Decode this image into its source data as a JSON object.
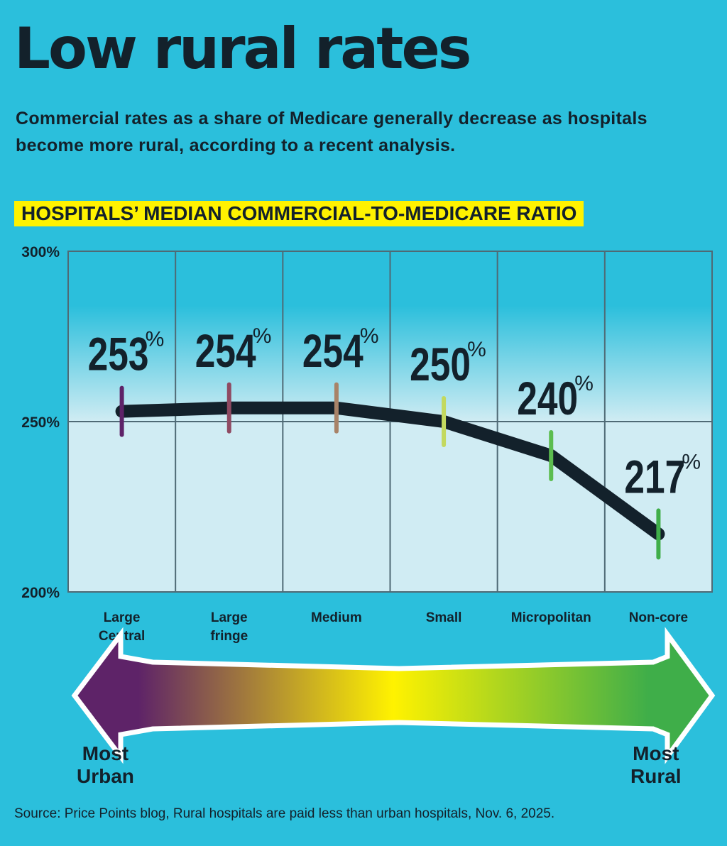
{
  "title": "Low rural rates",
  "subtitle": "Commercial rates as a share of Medicare generally decrease as hospitals become more rural, according to a recent analysis.",
  "source": "Source: Price Points blog, Rural hospitals are paid less than urban hospitals, Nov. 6, 2025.",
  "chart_data": {
    "type": "line",
    "title": "HOSPITALS’ MEDIAN COMMERCIAL-TO-MEDICARE RATIO",
    "categories": [
      [
        "Large",
        "Central"
      ],
      [
        "Large",
        "fringe"
      ],
      [
        "Medium"
      ],
      [
        "Small"
      ],
      [
        "Micropolitan"
      ],
      [
        "Non-core"
      ]
    ],
    "values": [
      253,
      254,
      254,
      250,
      240,
      217
    ],
    "value_labels": [
      "253",
      "254",
      "254",
      "250",
      "240",
      "217"
    ],
    "unit": "%",
    "ylim": [
      200,
      300
    ],
    "yticks": [
      "300%",
      "250%",
      "200%"
    ],
    "grid": true,
    "line_color": "#13212b",
    "marker_colors": [
      "#5e2368",
      "#8f4a62",
      "#a88368",
      "#c3d95f",
      "#5cbd4f",
      "#3fae49"
    ],
    "arrow": {
      "left_label": [
        "Most",
        "Urban"
      ],
      "right_label": [
        "Most",
        "Rural"
      ],
      "colors": [
        "#5e2368",
        "#fff200",
        "#3fae49"
      ]
    }
  },
  "colors": {
    "background": "#2bbfdc",
    "banner": "#fff200",
    "text": "#13212b"
  }
}
